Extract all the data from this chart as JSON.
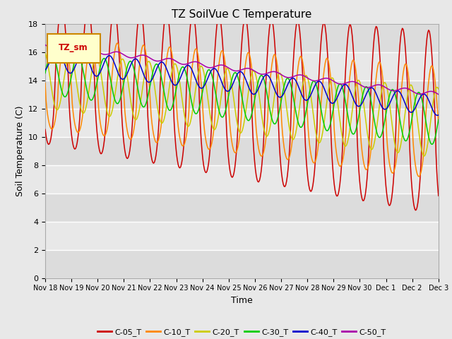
{
  "title": "TZ SoilVue C Temperature",
  "xlabel": "Time",
  "ylabel": "Soil Temperature (C)",
  "ylim": [
    0,
    18
  ],
  "yticks": [
    0,
    2,
    4,
    6,
    8,
    10,
    12,
    14,
    16,
    18
  ],
  "xtick_labels": [
    "Nov 18",
    "Nov 19",
    "Nov 20",
    "Nov 21",
    "Nov 22",
    "Nov 23",
    "Nov 24",
    "Nov 25",
    "Nov 26",
    "Nov 27",
    "Nov 28",
    "Nov 29",
    "Nov 30",
    "Dec 1",
    "Dec 2",
    "Dec 3"
  ],
  "series_colors": {
    "C-05_T": "#cc0000",
    "C-10_T": "#ff8800",
    "C-20_T": "#cccc00",
    "C-30_T": "#00cc00",
    "C-40_T": "#0000cc",
    "C-50_T": "#aa00aa"
  },
  "legend_label": "TZ_sm",
  "legend_box_color": "#ffffcc",
  "legend_box_border": "#cc8800",
  "bg_color": "#e8e8e8",
  "plot_bg_color": "#f0f0f0",
  "grid_color": "#ffffff"
}
